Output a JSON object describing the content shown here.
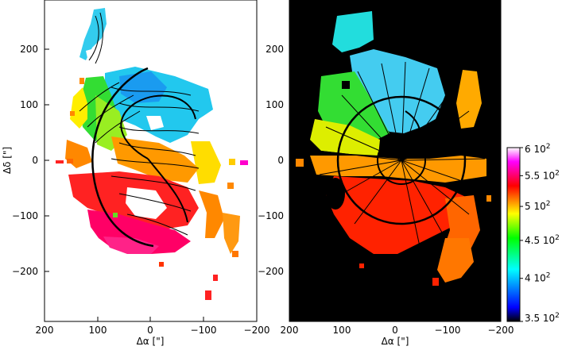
{
  "figure": {
    "left_panel": {
      "xlabel": "Δα [\"]",
      "ylabel": "Δδ [\"]",
      "xlim": [
        200,
        -200
      ],
      "ylim": [
        -280,
        270
      ],
      "x_ticks": [
        "200",
        "100",
        "0",
        "−100",
        "−200"
      ],
      "y_ticks": [
        "200",
        "100",
        "0",
        "−100",
        "−200"
      ],
      "background": "#ffffff"
    },
    "right_panel": {
      "xlabel": "Δα [\"]",
      "xlim": [
        200,
        -200
      ],
      "ylim": [
        -280,
        270
      ],
      "x_ticks": [
        "200",
        "100",
        "0",
        "−100",
        "−200"
      ],
      "y_ticks": [
        "200",
        "100",
        "0",
        "−100",
        "−200"
      ],
      "background": "#000000"
    },
    "colorbar": {
      "scale": "log",
      "range": [
        350,
        600
      ],
      "labels": [
        {
          "value": 600,
          "mant": "6",
          "exp": "2"
        },
        {
          "value": 550,
          "mant": "5.5",
          "exp": "2"
        },
        {
          "value": 500,
          "mant": "5",
          "exp": "2"
        },
        {
          "value": 450,
          "mant": "4.5",
          "exp": "2"
        },
        {
          "value": 400,
          "mant": "4",
          "exp": "2"
        },
        {
          "value": 350,
          "mant": "3.5",
          "exp": "2"
        }
      ],
      "tens": "10",
      "colormap": [
        "#000000",
        "#0000ff",
        "#00ffff",
        "#00ff00",
        "#ffff00",
        "#ff0000",
        "#ff00ff",
        "#ffffff"
      ]
    }
  }
}
